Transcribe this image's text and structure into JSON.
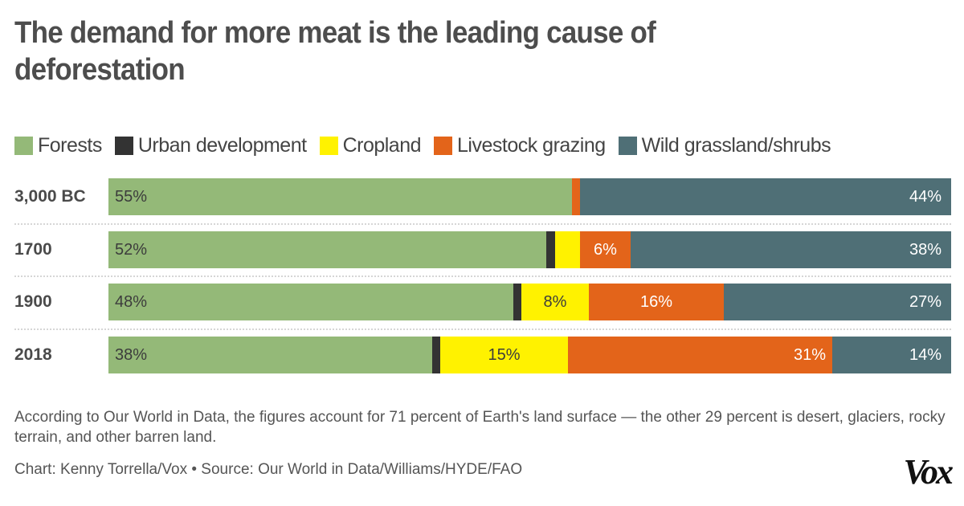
{
  "title": "The demand for more meat is the leading cause of deforestation",
  "legend": [
    {
      "label": "Forests",
      "color": "#94b978"
    },
    {
      "label": "Urban development",
      "color": "#333333"
    },
    {
      "label": "Cropland",
      "color": "#fff200"
    },
    {
      "label": "Livestock grazing",
      "color": "#e3641a"
    },
    {
      "label": "Wild grassland/shrubs",
      "color": "#4f6f76"
    }
  ],
  "chart_data": {
    "type": "bar",
    "orientation": "horizontal",
    "stacked": true,
    "title": "The demand for more meat is the leading cause of deforestation",
    "xlabel": "",
    "ylabel": "",
    "xlim": [
      0,
      100
    ],
    "unit": "%",
    "categories": [
      "3,000 BC",
      "1700",
      "1900",
      "2018"
    ],
    "series": [
      {
        "name": "Forests",
        "color": "#94b978",
        "values": [
          55,
          52,
          48,
          38
        ],
        "labels": [
          "55%",
          "52%",
          "48%",
          "38%"
        ]
      },
      {
        "name": "Urban development",
        "color": "#333333",
        "values": [
          0,
          1,
          1,
          1
        ],
        "labels": [
          "",
          "",
          "",
          ""
        ]
      },
      {
        "name": "Cropland",
        "color": "#fff200",
        "values": [
          0,
          3,
          8,
          15
        ],
        "labels": [
          "",
          "",
          "8%",
          "15%"
        ]
      },
      {
        "name": "Livestock grazing",
        "color": "#e3641a",
        "values": [
          1,
          6,
          16,
          31
        ],
        "labels": [
          "",
          "6%",
          "16%",
          "31%"
        ]
      },
      {
        "name": "Wild grassland/shrubs",
        "color": "#4f6f76",
        "values": [
          44,
          38,
          27,
          14
        ],
        "labels": [
          "44%",
          "38%",
          "27%",
          "14%"
        ]
      }
    ],
    "legend_position": "top-left",
    "grid": false
  },
  "note": "According to Our World in Data, the figures account for 71 percent of Earth's land surface — the other 29 percent is desert, glaciers, rocky terrain, and other barren land.",
  "credit": "Chart: Kenny Torrella/Vox • Source: Our World in Data/Williams/HYDE/FAO",
  "logo_text": "Vox"
}
